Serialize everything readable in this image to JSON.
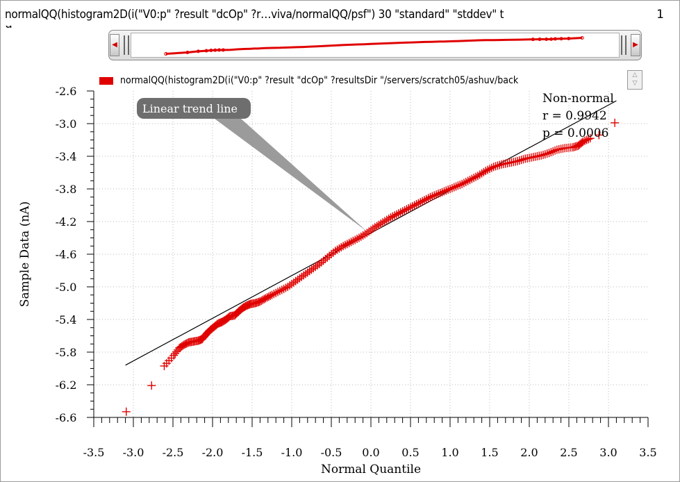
{
  "window": {
    "title": "normalQQ(histogram2D(i(\"V0:p\" ?result \"dcOp\" ?r…viva/normalQQ/psf\") 30 \"standard\" \"stddev\" t",
    "index": "1"
  },
  "legend": {
    "label": "normalQQ(histogram2D(i(\"V0:p\" ?result \"dcOp\" ?resultsDir \"/servers/scratch05/ashuv/back",
    "color": "#e00000"
  },
  "annotations": {
    "callout": "Linear trend line",
    "stats": [
      "Non-normal",
      "r = 0.9942",
      "p = 0.0006"
    ]
  },
  "colors": {
    "data": "#e00000",
    "trend": "#000000",
    "grid": "#b8b8b8",
    "callout_bg": "#6e6e6e"
  },
  "chart_data": {
    "type": "scatter",
    "title": "",
    "xlabel": "Normal Quantile",
    "ylabel": "Sample Data (nA)",
    "xlim": [
      -3.5,
      3.5
    ],
    "ylim": [
      -6.6,
      -2.6
    ],
    "xticks": [
      "-3.5",
      "-3.0",
      "-2.5",
      "-2.0",
      "-1.5",
      "-1.0",
      "-0.5",
      "0.0",
      "0.5",
      "1.0",
      "1.5",
      "2.0",
      "2.5",
      "3.0",
      "3.5"
    ],
    "yticks": [
      "-2.6",
      "-3.0",
      "-3.4",
      "-3.8",
      "-4.2",
      "-4.6",
      "-5.0",
      "-5.4",
      "-5.8",
      "-6.2",
      "-6.6"
    ],
    "grid": true,
    "legend_position": "top",
    "trend_line": {
      "x": [
        -3.1,
        3.1
      ],
      "y": [
        -5.96,
        -2.72
      ]
    },
    "series": [
      {
        "name": "normalQQ(histogram2D(i(\"V0:p\" ?result \"dcOp\" ?resultsDir \"/servers/scratch05/ashuv/back",
        "marker": "plus",
        "points": [
          [
            -3.09,
            -6.53
          ],
          [
            -2.77,
            -6.21
          ],
          [
            -2.61,
            -5.97
          ],
          [
            -2.49,
            -5.84
          ],
          [
            -2.42,
            -5.75
          ],
          [
            -2.36,
            -5.71
          ],
          [
            -2.3,
            -5.68
          ],
          [
            -2.24,
            -5.67
          ],
          [
            -2.18,
            -5.66
          ],
          [
            -2.13,
            -5.64
          ],
          [
            -2.08,
            -5.58
          ],
          [
            -2.03,
            -5.53
          ],
          [
            -1.98,
            -5.49
          ],
          [
            -1.93,
            -5.45
          ],
          [
            -1.88,
            -5.43
          ],
          [
            -1.83,
            -5.4
          ],
          [
            -1.78,
            -5.36
          ],
          [
            -1.72,
            -5.35
          ],
          [
            -1.67,
            -5.3
          ],
          [
            -1.62,
            -5.26
          ],
          [
            -1.57,
            -5.23
          ],
          [
            -1.52,
            -5.21
          ],
          [
            -1.46,
            -5.2
          ],
          [
            -1.4,
            -5.18
          ],
          [
            -1.33,
            -5.14
          ],
          [
            -1.25,
            -5.1
          ],
          [
            -1.15,
            -5.05
          ],
          [
            -1.05,
            -5.0
          ],
          [
            -0.95,
            -4.93
          ],
          [
            -0.85,
            -4.86
          ],
          [
            -0.75,
            -4.79
          ],
          [
            -0.65,
            -4.72
          ],
          [
            -0.55,
            -4.64
          ],
          [
            -0.45,
            -4.56
          ],
          [
            -0.35,
            -4.5
          ],
          [
            -0.25,
            -4.45
          ],
          [
            -0.15,
            -4.4
          ],
          [
            -0.05,
            -4.34
          ],
          [
            0.05,
            -4.27
          ],
          [
            0.15,
            -4.21
          ],
          [
            0.25,
            -4.15
          ],
          [
            0.35,
            -4.1
          ],
          [
            0.45,
            -4.05
          ],
          [
            0.55,
            -4.0
          ],
          [
            0.65,
            -3.95
          ],
          [
            0.75,
            -3.9
          ],
          [
            0.85,
            -3.86
          ],
          [
            0.95,
            -3.82
          ],
          [
            1.05,
            -3.78
          ],
          [
            1.15,
            -3.74
          ],
          [
            1.25,
            -3.69
          ],
          [
            1.35,
            -3.64
          ],
          [
            1.45,
            -3.58
          ],
          [
            1.55,
            -3.53
          ],
          [
            1.65,
            -3.5
          ],
          [
            1.75,
            -3.48
          ],
          [
            1.85,
            -3.46
          ],
          [
            1.95,
            -3.43
          ],
          [
            2.05,
            -3.41
          ],
          [
            2.15,
            -3.39
          ],
          [
            2.25,
            -3.36
          ],
          [
            2.35,
            -3.32
          ],
          [
            2.45,
            -3.3
          ],
          [
            2.55,
            -3.29
          ],
          [
            2.62,
            -3.27
          ],
          [
            2.68,
            -3.22
          ],
          [
            2.77,
            -3.18
          ],
          [
            2.88,
            -3.14
          ],
          [
            3.08,
            -2.99
          ]
        ]
      }
    ]
  }
}
